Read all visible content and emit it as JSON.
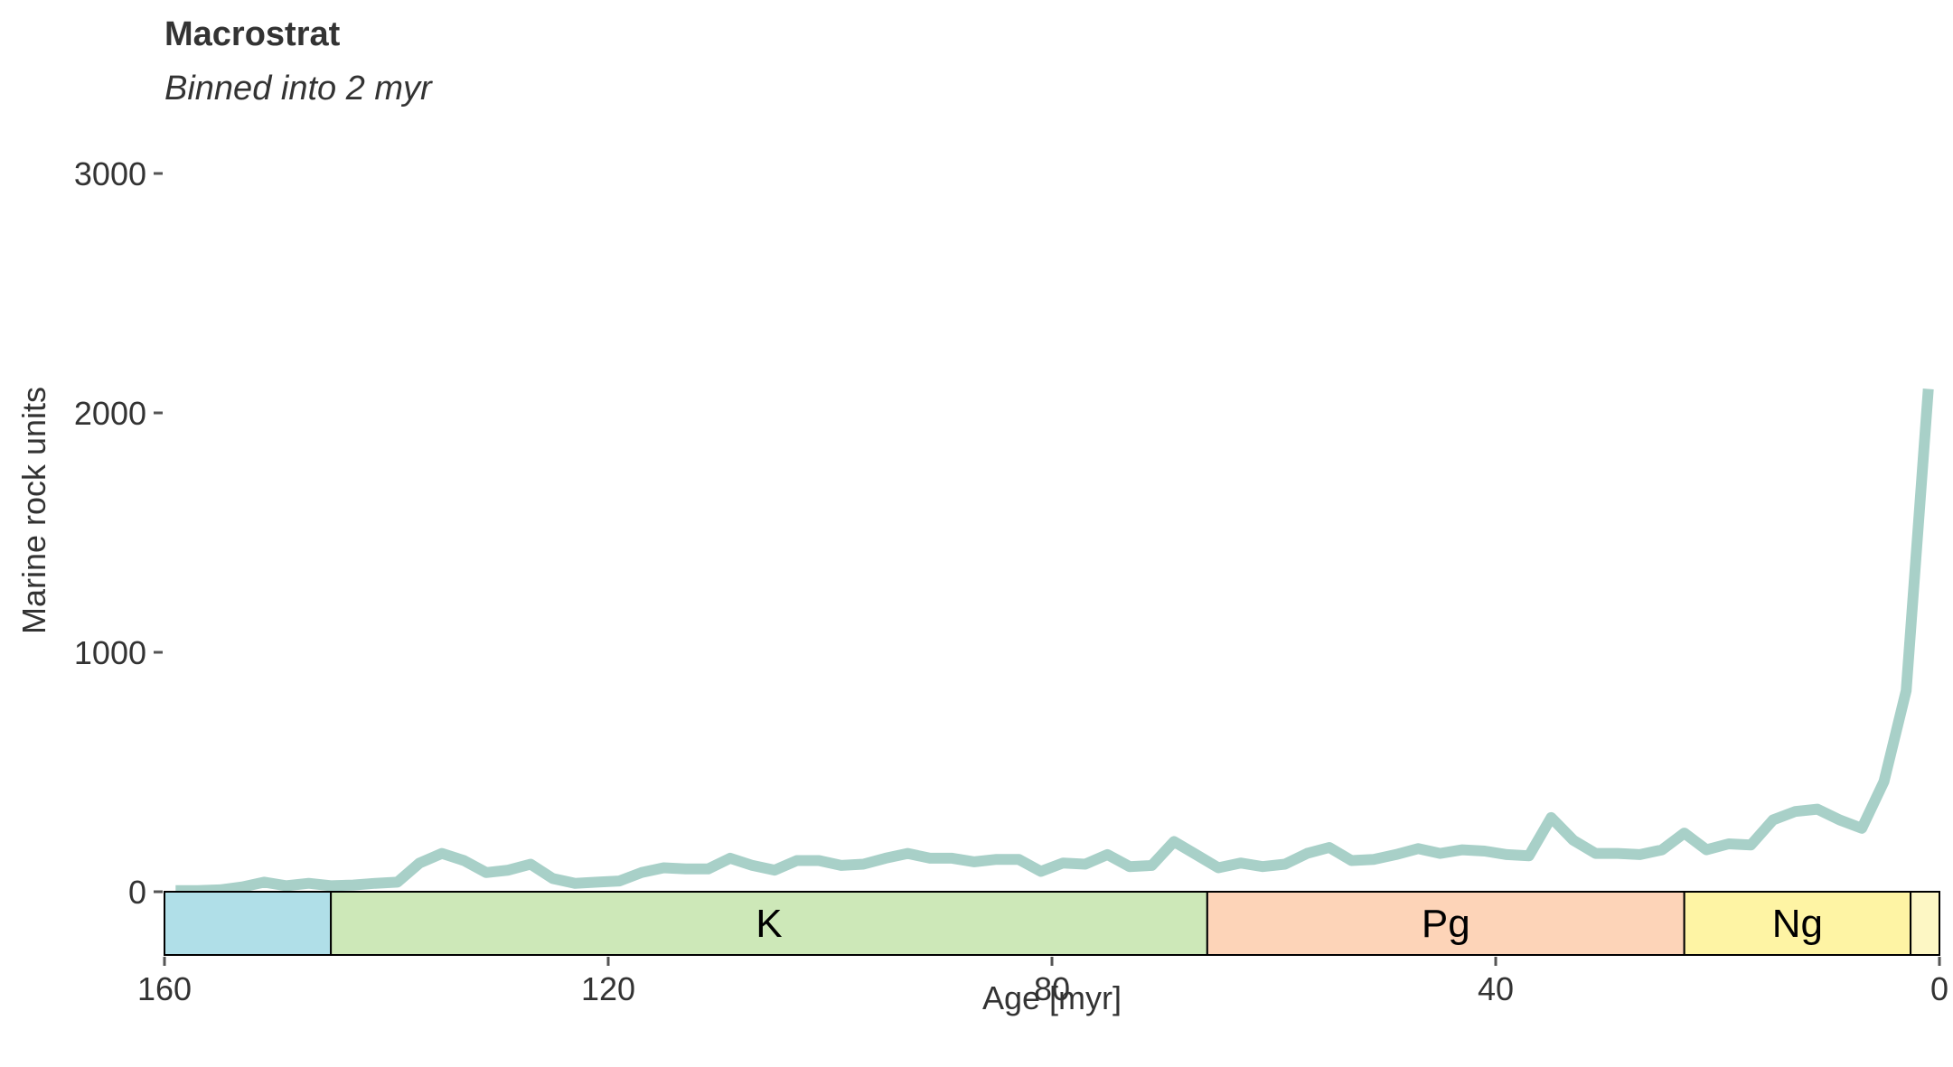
{
  "chart_data": {
    "type": "line",
    "title": "Macrostrat",
    "subtitle": "Binned into 2 myr",
    "xlabel": "Age [myr]",
    "ylabel": "Marine rock units",
    "xlim": [
      160,
      0
    ],
    "ylim": [
      0,
      3000
    ],
    "x_reversed": true,
    "grid": false,
    "x_ticks": [
      160,
      120,
      80,
      40,
      0
    ],
    "y_ticks": [
      0,
      1000,
      2000,
      3000
    ],
    "line_color": "#a8d0c8",
    "series": [
      {
        "x": [
          159,
          157,
          155,
          153,
          151,
          149,
          147,
          145,
          143,
          141,
          139,
          137,
          135,
          133,
          131,
          129,
          127,
          125,
          123,
          121,
          119,
          117,
          115,
          113,
          111,
          109,
          107,
          105,
          103,
          101,
          99,
          97,
          95,
          93,
          91,
          89,
          87,
          85,
          83,
          81,
          79,
          77,
          75,
          73,
          71,
          69,
          67,
          65,
          63,
          61,
          59,
          57,
          55,
          53,
          51,
          49,
          47,
          45,
          43,
          41,
          39,
          37,
          35,
          33,
          31,
          29,
          27,
          25,
          23,
          21,
          19,
          17,
          15,
          13,
          11,
          9,
          7,
          5,
          3,
          1
        ],
        "values": [
          5,
          5,
          8,
          20,
          40,
          25,
          35,
          25,
          28,
          35,
          40,
          120,
          160,
          130,
          80,
          90,
          115,
          55,
          35,
          40,
          45,
          80,
          100,
          95,
          95,
          140,
          110,
          90,
          130,
          130,
          110,
          115,
          140,
          160,
          140,
          140,
          125,
          135,
          135,
          85,
          120,
          115,
          155,
          105,
          110,
          210,
          155,
          100,
          120,
          105,
          115,
          160,
          185,
          130,
          135,
          155,
          180,
          160,
          175,
          170,
          155,
          150,
          310,
          215,
          160,
          160,
          155,
          175,
          245,
          175,
          200,
          195,
          300,
          335,
          345,
          300,
          265,
          460,
          840,
          2100
        ]
      }
    ],
    "periods": [
      {
        "label": "",
        "start": 160,
        "end": 145,
        "color": "#b0dfe8"
      },
      {
        "label": "K",
        "start": 145,
        "end": 66,
        "color": "#cde8b8"
      },
      {
        "label": "Pg",
        "start": 66,
        "end": 23,
        "color": "#fdd4b8"
      },
      {
        "label": "Ng",
        "start": 23,
        "end": 2.6,
        "color": "#fef4a4"
      },
      {
        "label": "",
        "start": 2.6,
        "end": 0,
        "color": "#fdf7c4"
      }
    ]
  }
}
